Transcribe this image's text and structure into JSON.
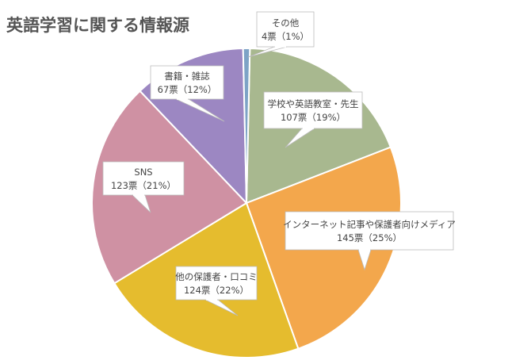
{
  "chart_data": {
    "type": "pie",
    "title": "英語学習に関する情報源",
    "colors": [
      "#a8b88f",
      "#f3a74c",
      "#e5bc2e",
      "#cf91a3",
      "#9c87c2",
      "#7da3c6"
    ],
    "slices": [
      {
        "name": "学校や英語教室・先生",
        "value": 107,
        "percent": 19,
        "label": "107票（19%）",
        "color": "#a8b88f"
      },
      {
        "name": "インターネット記事や保護者向けメディア",
        "value": 145,
        "percent": 25,
        "label": "145票（25%）",
        "color": "#f3a74c"
      },
      {
        "name": "他の保護者・口コミ",
        "value": 124,
        "percent": 22,
        "label": "124票（22%）",
        "color": "#e5bc2e"
      },
      {
        "name": "SNS",
        "value": 123,
        "percent": 21,
        "label": "123票（21%）",
        "color": "#cf91a3"
      },
      {
        "name": "書籍・雑誌",
        "value": 67,
        "percent": 12,
        "label": "67票（12%）",
        "color": "#9c87c2"
      },
      {
        "name": "その他",
        "value": 4,
        "percent": 1,
        "label": "4票（1%）",
        "color": "#7da3c6"
      }
    ]
  }
}
